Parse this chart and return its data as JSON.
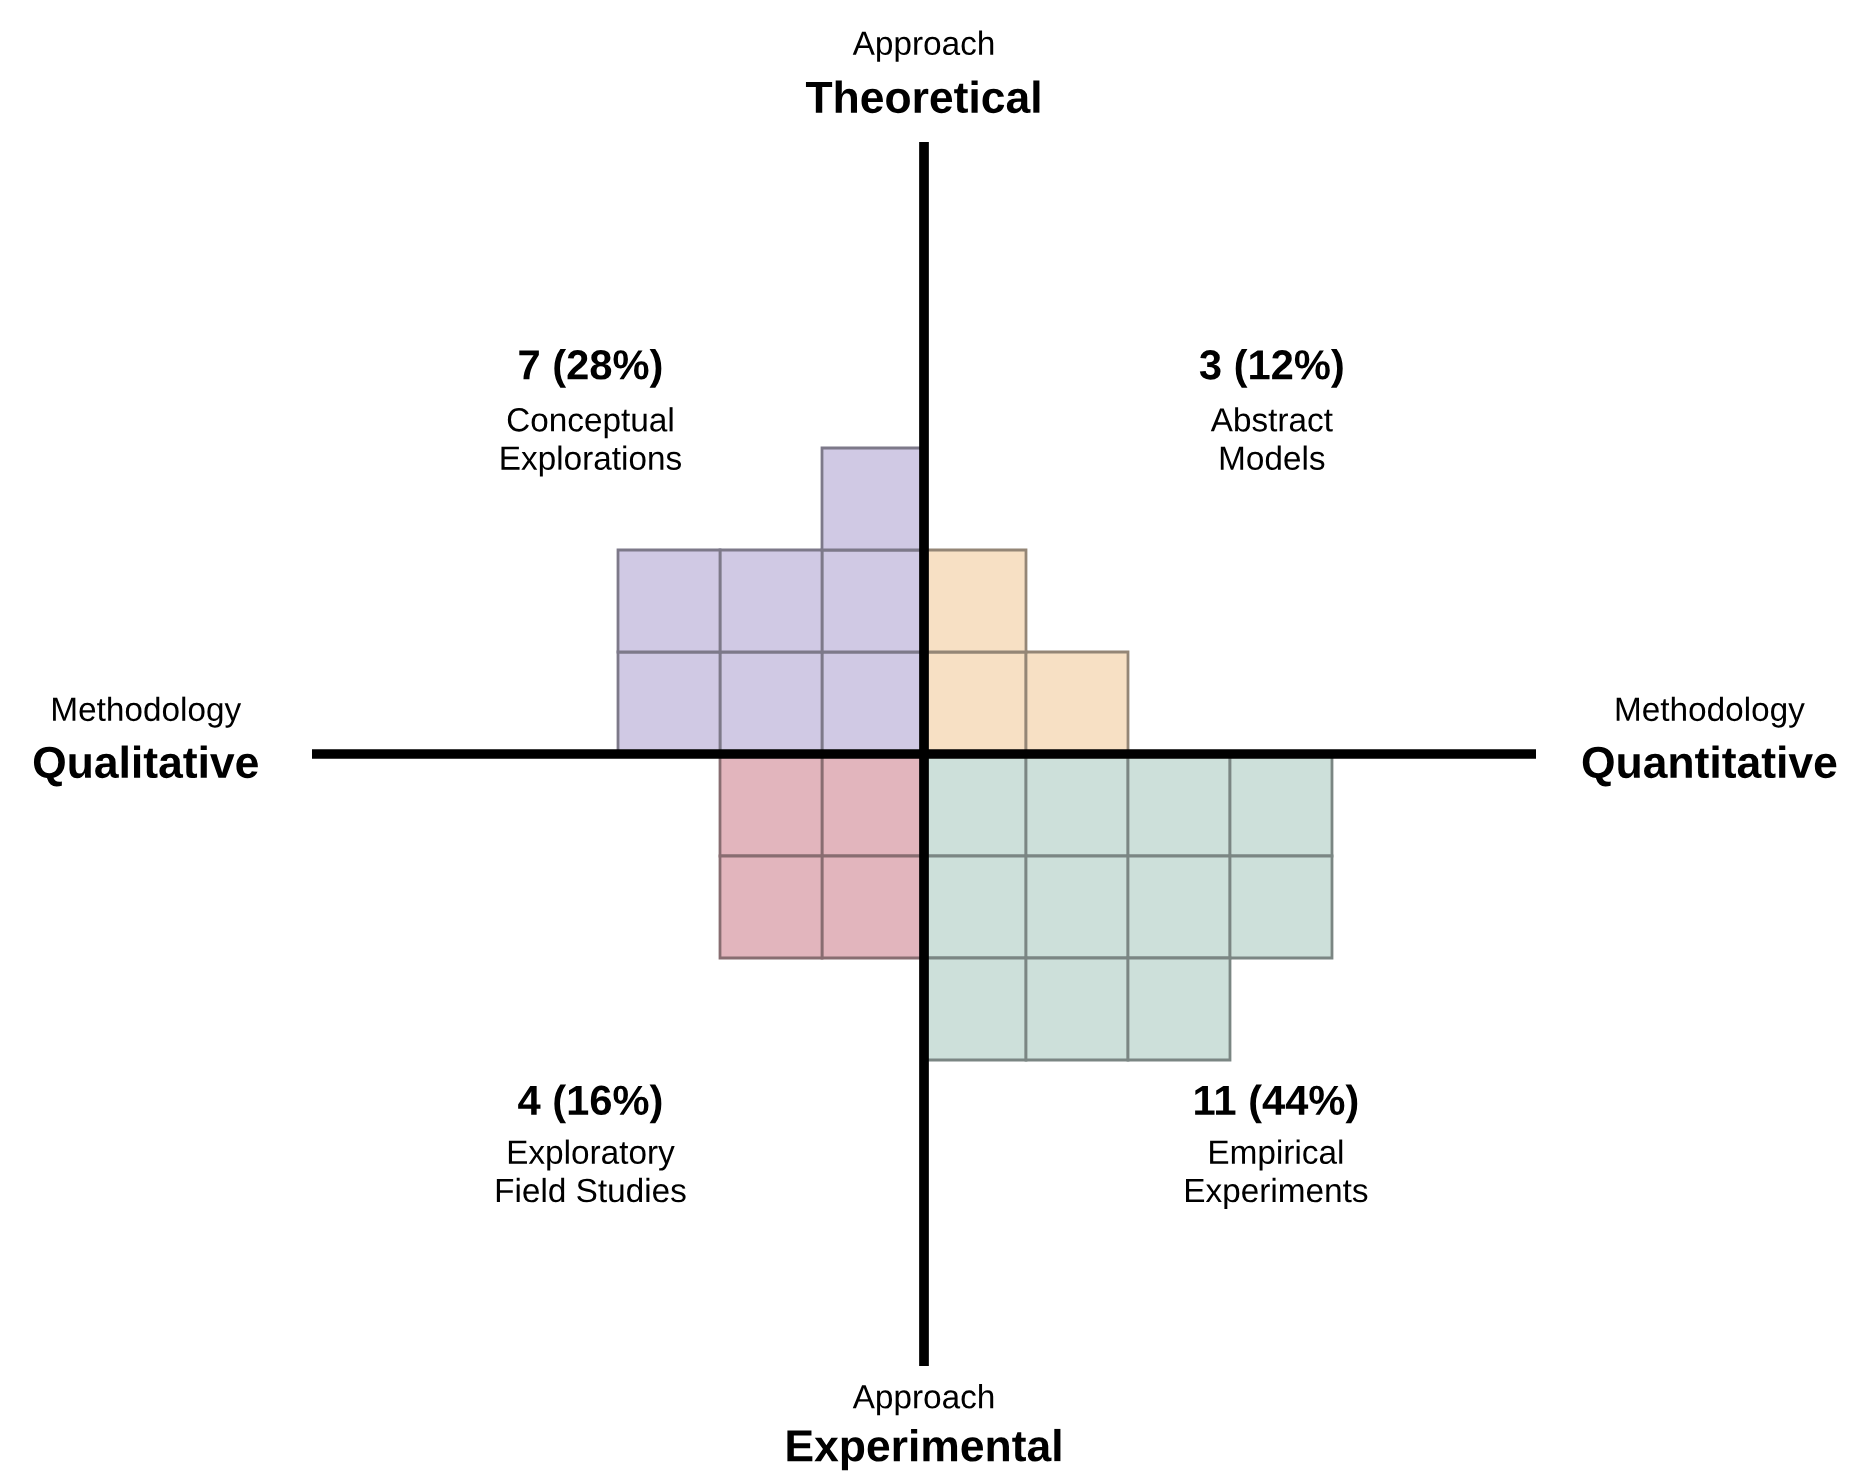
{
  "chart_data": {
    "type": "other",
    "xlabel": "Methodology",
    "ylabel": "Approach",
    "annotations": [
      "Theoretical",
      "Experimental",
      "Qualitative",
      "Quantitative"
    ],
    "categories": [
      "Conceptual\nExplorations",
      "Abstract\nModels",
      "Exploratory\nField Studies",
      "Empirical\nExperiments"
    ],
    "values": [
      7,
      3,
      4,
      11
    ],
    "value_labels": [
      "7 (28%)",
      "3 (12%)",
      "4 (16%)",
      "11 (44%)"
    ],
    "colors": [
      "#d0c9e4",
      "#f7e0c4",
      "#e2b5bd",
      "#cde0da"
    ]
  }
}
